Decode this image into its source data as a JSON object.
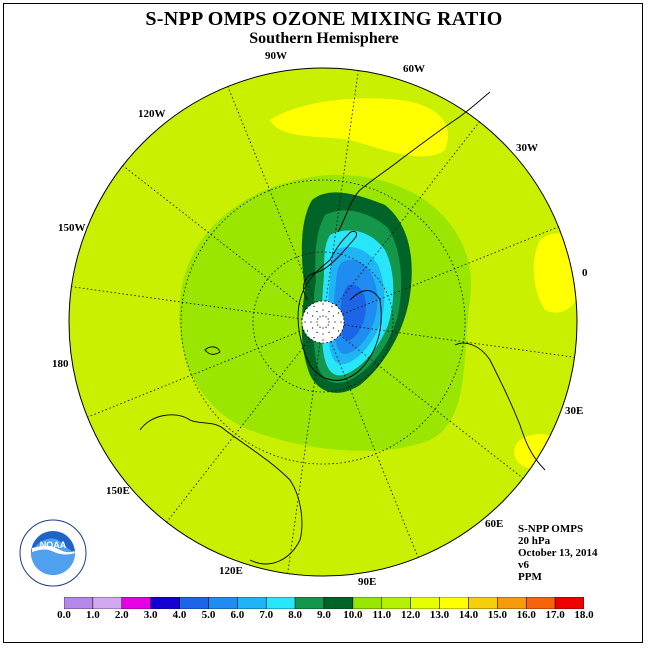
{
  "title": "S-NPP OMPS OZONE MIXING RATIO",
  "subtitle": "Southern Hemisphere",
  "longitude_labels": {
    "lon_90W": "90W",
    "lon_60W": "60W",
    "lon_120W": "120W",
    "lon_30W": "30W",
    "lon_150W": "150W",
    "lon_0": "0",
    "lon_180": "180",
    "lon_30E": "30E",
    "lon_150E": "150E",
    "lon_60E": "60E",
    "lon_120E": "120E",
    "lon_90E": "90E"
  },
  "info": {
    "instrument": "S-NPP OMPS",
    "level": "20 hPa",
    "date": "October 13, 2014",
    "version": "v6",
    "units": "PPM"
  },
  "logo_text": "NOAA",
  "colorbar": {
    "labels": [
      "0.0",
      "1.0",
      "2.0",
      "3.0",
      "4.0",
      "5.0",
      "6.0",
      "7.0",
      "8.0",
      "9.0",
      "10.0",
      "11.0",
      "12.0",
      "13.0",
      "14.0",
      "15.0",
      "16.0",
      "17.0",
      "18.0"
    ],
    "colors": [
      "#b487e8",
      "#d2a8f0",
      "#e600e6",
      "#1400d2",
      "#1e64e6",
      "#1e8cf0",
      "#1eb4f5",
      "#28e6fa",
      "#14964b",
      "#006428",
      "#96e600",
      "#b4f000",
      "#e6ff00",
      "#ffff00",
      "#f5cd0a",
      "#f59b0a",
      "#f5640a",
      "#f00000",
      "#784b32"
    ]
  },
  "map_colors": {
    "background": "#c8f000",
    "outer_band": "#9be600",
    "dark_green": "#006428",
    "mid_green": "#14964b",
    "cyan": "#28e6fa",
    "light_blue": "#1eb4f5",
    "blue": "#1e8cf0",
    "deep_blue": "#1e64e6",
    "yellow": "#ffff00",
    "pole": "#ffffff"
  }
}
